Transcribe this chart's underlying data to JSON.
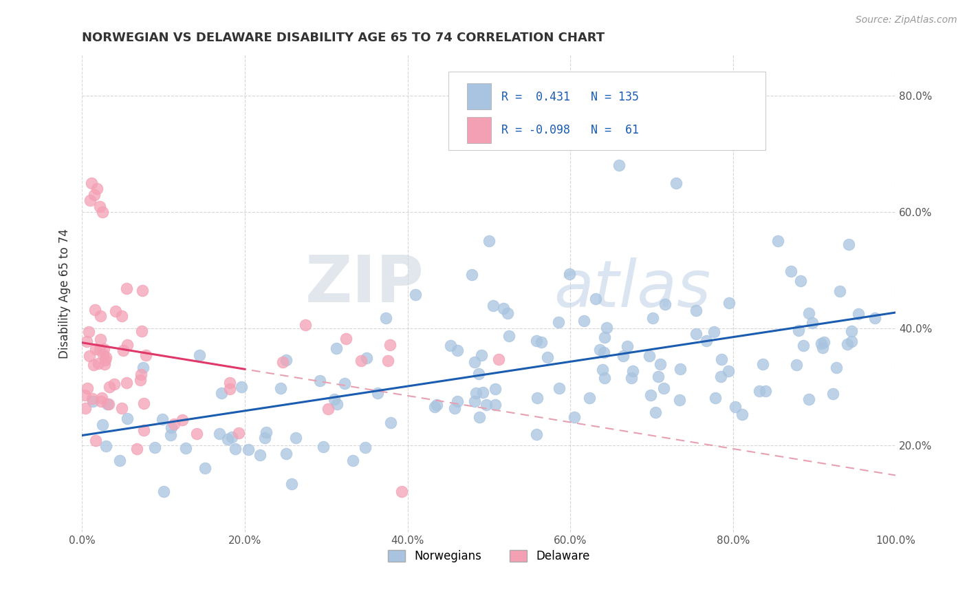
{
  "title": "NORWEGIAN VS DELAWARE DISABILITY AGE 65 TO 74 CORRELATION CHART",
  "source_text": "Source: ZipAtlas.com",
  "ylabel": "Disability Age 65 to 74",
  "xlim": [
    0.0,
    1.0
  ],
  "ylim": [
    0.05,
    0.87
  ],
  "x_ticks": [
    0.0,
    0.2,
    0.4,
    0.6,
    0.8,
    1.0
  ],
  "x_tick_labels": [
    "0.0%",
    "20.0%",
    "40.0%",
    "60.0%",
    "80.0%",
    "100.0%"
  ],
  "y_ticks": [
    0.2,
    0.4,
    0.6,
    0.8
  ],
  "y_tick_labels": [
    "20.0%",
    "40.0%",
    "60.0%",
    "80.0%"
  ],
  "legend_blue_label": "Norwegians",
  "legend_pink_label": "Delaware",
  "r_blue": 0.431,
  "n_blue": 135,
  "r_pink": -0.098,
  "n_pink": 61,
  "blue_color": "#a8c4e0",
  "pink_color": "#f4a0b4",
  "blue_line_color": "#1a5cb0",
  "pink_line_color": "#e03868",
  "pink_dash_color": "#e8a0b0",
  "watermark_zip": "ZIP",
  "watermark_atlas": "atlas",
  "grid_color": "#cccccc",
  "background_color": "#ffffff",
  "title_color": "#333333",
  "tick_color": "#555555",
  "source_color": "#999999"
}
